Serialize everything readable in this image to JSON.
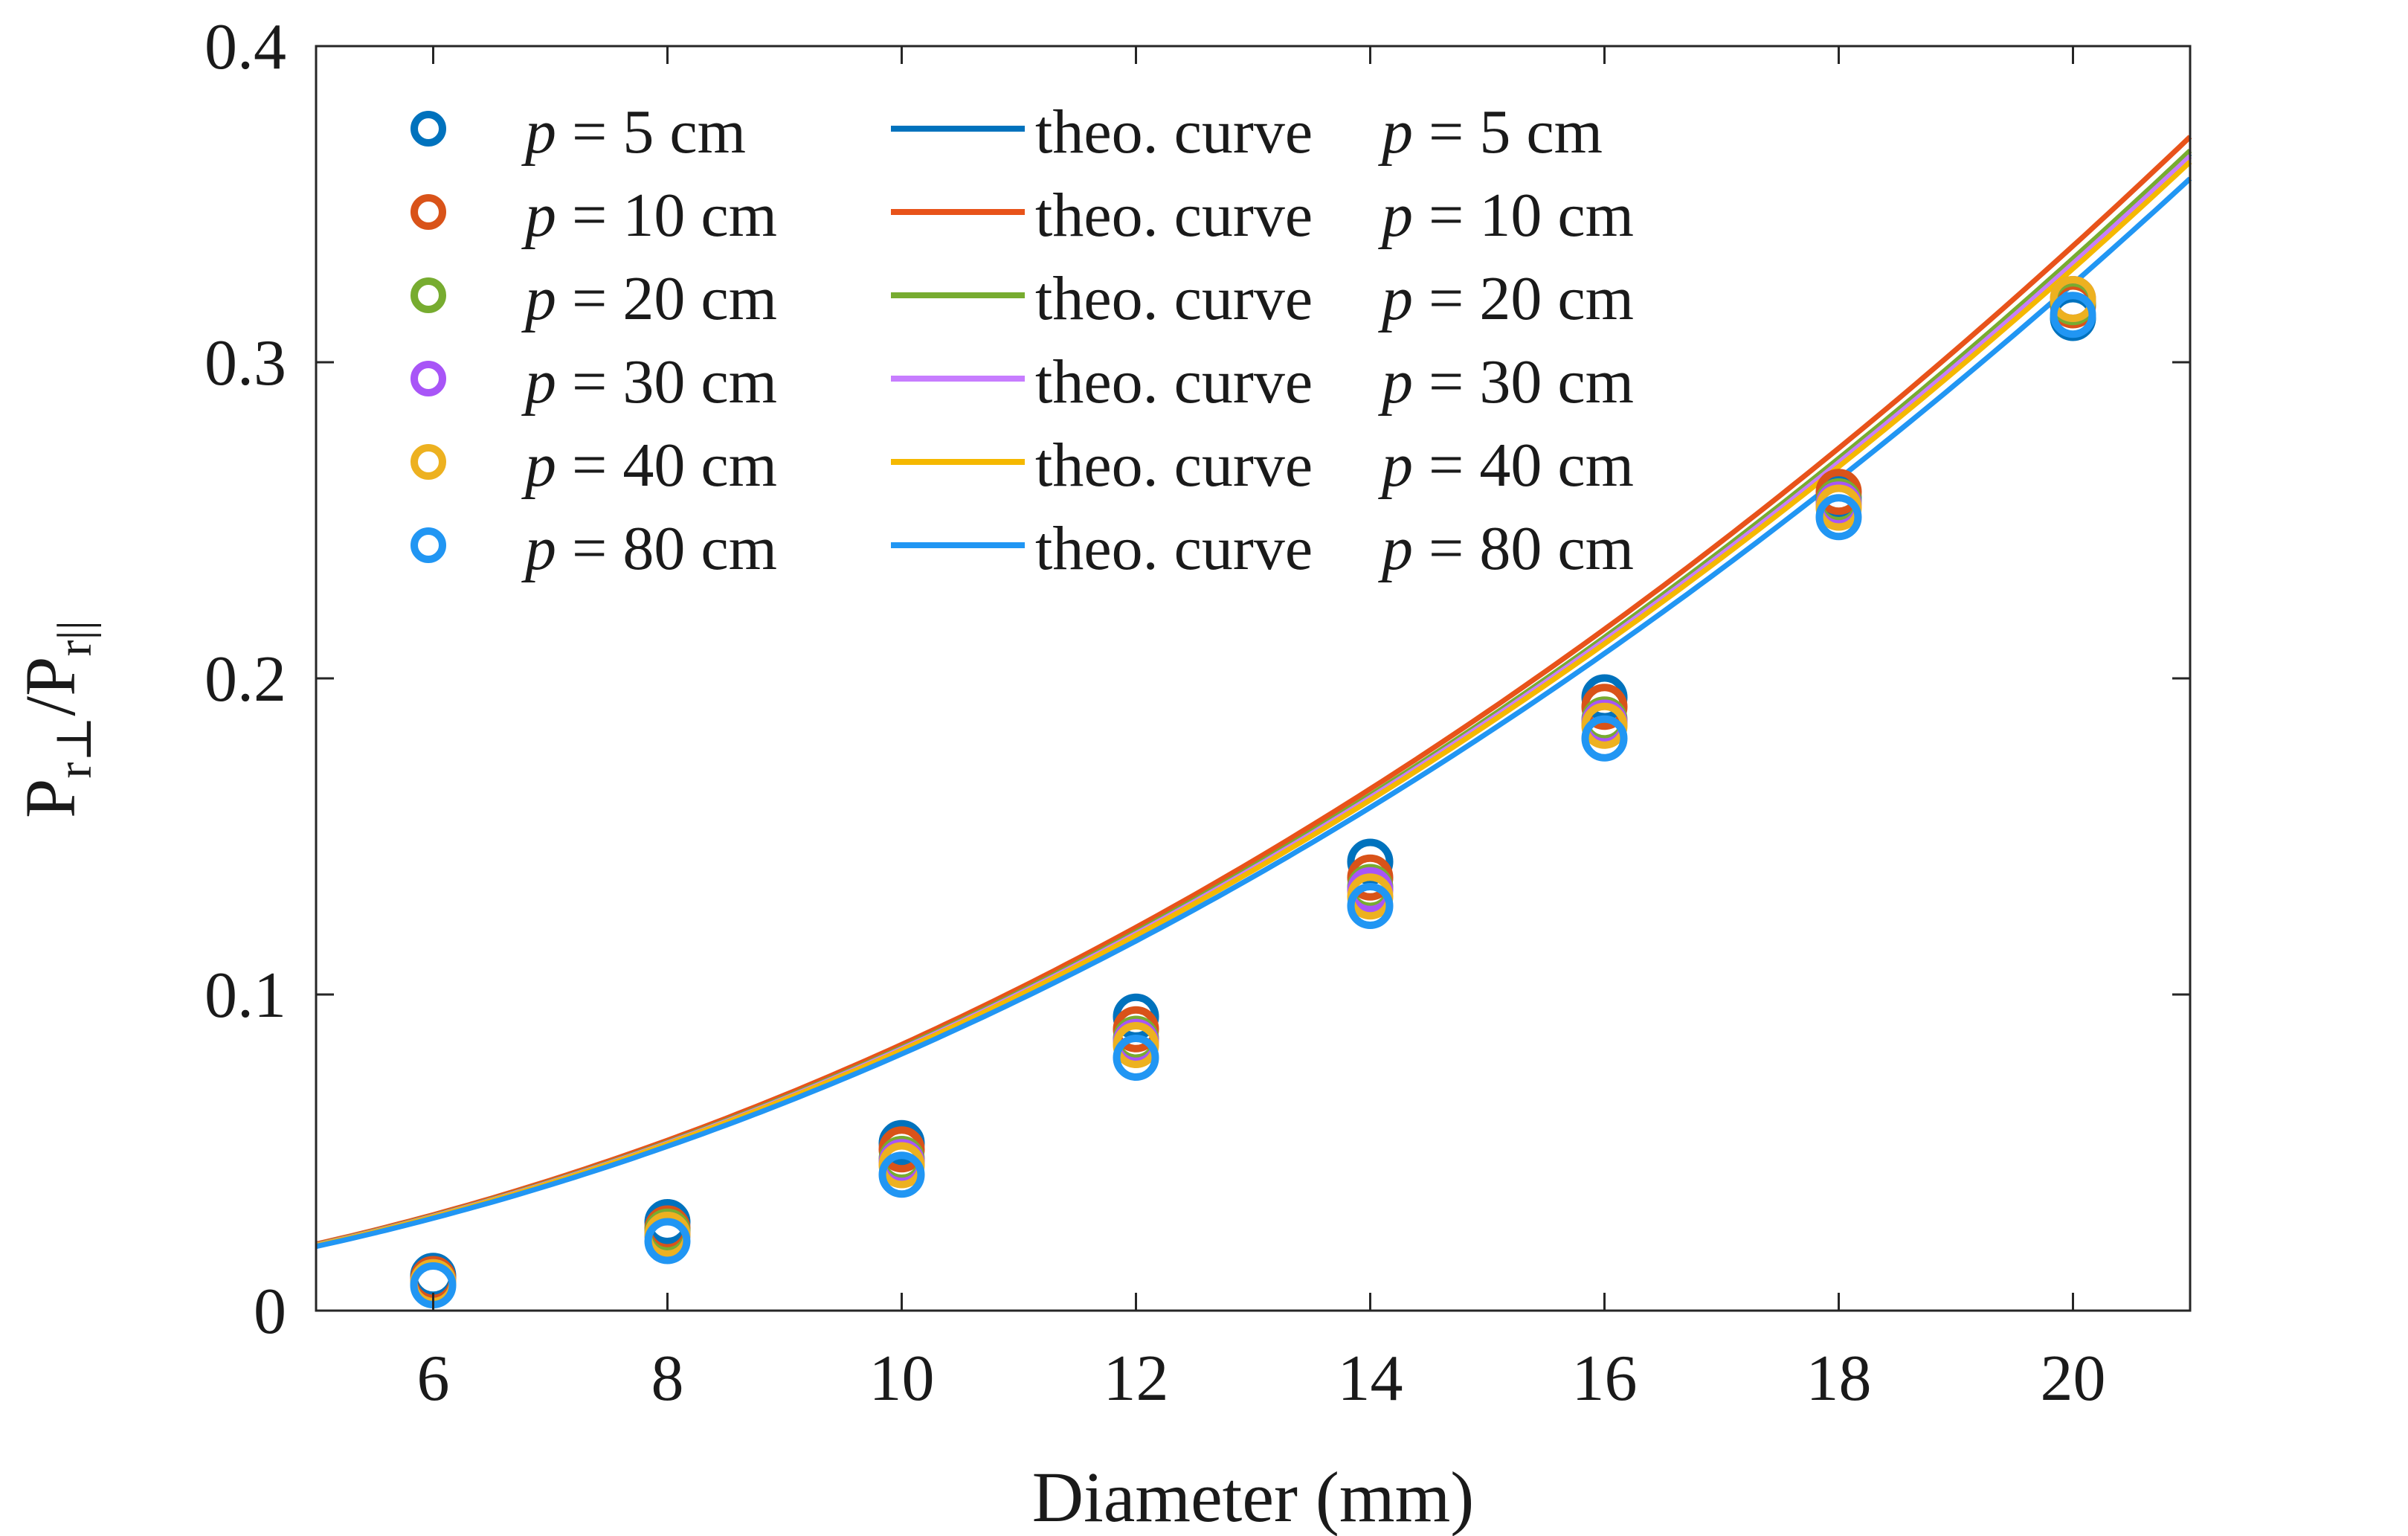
{
  "chart_data": {
    "type": "scatter",
    "title": "",
    "xlabel": "Diameter (mm)",
    "ylabel_main": "P",
    "ylabel_sub1": "r⊥",
    "ylabel_sep": "/P",
    "ylabel_sub2": "r||",
    "xlim": [
      5,
      21
    ],
    "ylim": [
      0,
      0.4
    ],
    "xticks": [
      6,
      8,
      10,
      12,
      14,
      16,
      18,
      20
    ],
    "yticks": [
      0,
      0.1,
      0.2,
      0.3,
      0.4
    ],
    "xtick_labels": [
      "6",
      "8",
      "10",
      "12",
      "14",
      "16",
      "18",
      "20"
    ],
    "ytick_labels": [
      "0",
      "0.1",
      "0.2",
      "0.3",
      "0.4"
    ],
    "legend_position": "top-left",
    "x": [
      6,
      8,
      10,
      12,
      14,
      16,
      18,
      20
    ],
    "series": [
      {
        "name": "p = 5 cm",
        "p_label": "p",
        "p_value": " = 5 cm",
        "color": "#0072BD",
        "values": [
          0.011,
          0.028,
          0.053,
          0.093,
          0.142,
          0.194,
          0.257,
          0.314
        ]
      },
      {
        "name": "p = 10 cm",
        "p_label": "p",
        "p_value": " = 10 cm",
        "color": "#D95319",
        "values": [
          0.01,
          0.026,
          0.051,
          0.089,
          0.137,
          0.191,
          0.259,
          0.318
        ]
      },
      {
        "name": "p = 20 cm",
        "p_label": "p",
        "p_value": " = 20 cm",
        "color": "#77AC30",
        "values": [
          0.009,
          0.025,
          0.048,
          0.086,
          0.134,
          0.187,
          0.256,
          0.319
        ]
      },
      {
        "name": "p = 30 cm",
        "p_label": "p",
        "p_value": " = 30 cm",
        "color": "#A855F7",
        "values": [
          0.009,
          0.024,
          0.047,
          0.085,
          0.133,
          0.186,
          0.255,
          0.32
        ]
      },
      {
        "name": "p = 40 cm",
        "p_label": "p",
        "p_value": " = 40 cm",
        "color": "#EDB120",
        "values": [
          0.009,
          0.024,
          0.046,
          0.084,
          0.131,
          0.185,
          0.254,
          0.32
        ]
      },
      {
        "name": "p = 80 cm",
        "p_label": "p",
        "p_value": " = 80 cm",
        "color": "#2196F3",
        "values": [
          0.008,
          0.022,
          0.043,
          0.08,
          0.128,
          0.181,
          0.251,
          0.315
        ]
      }
    ],
    "theory_label": "theo. curve  ",
    "theory_curves": [
      {
        "name": "theo. curve p = 5 cm",
        "color": "#0072BD",
        "coef": 0.00083
      },
      {
        "name": "theo. curve p = 10 cm",
        "color": "#E8531A",
        "coef": 0.000842
      },
      {
        "name": "theo. curve p = 20 cm",
        "color": "#77AC30",
        "coef": 0.000832
      },
      {
        "name": "theo. curve p = 30 cm",
        "color": "#C77DFF",
        "coef": 0.000828
      },
      {
        "name": "theo. curve p = 40 cm",
        "color": "#F5B800",
        "coef": 0.000824
      },
      {
        "name": "theo. curve p = 80 cm",
        "color": "#2196F3",
        "coef": 0.000812
      }
    ],
    "theory_exponent": 2
  }
}
